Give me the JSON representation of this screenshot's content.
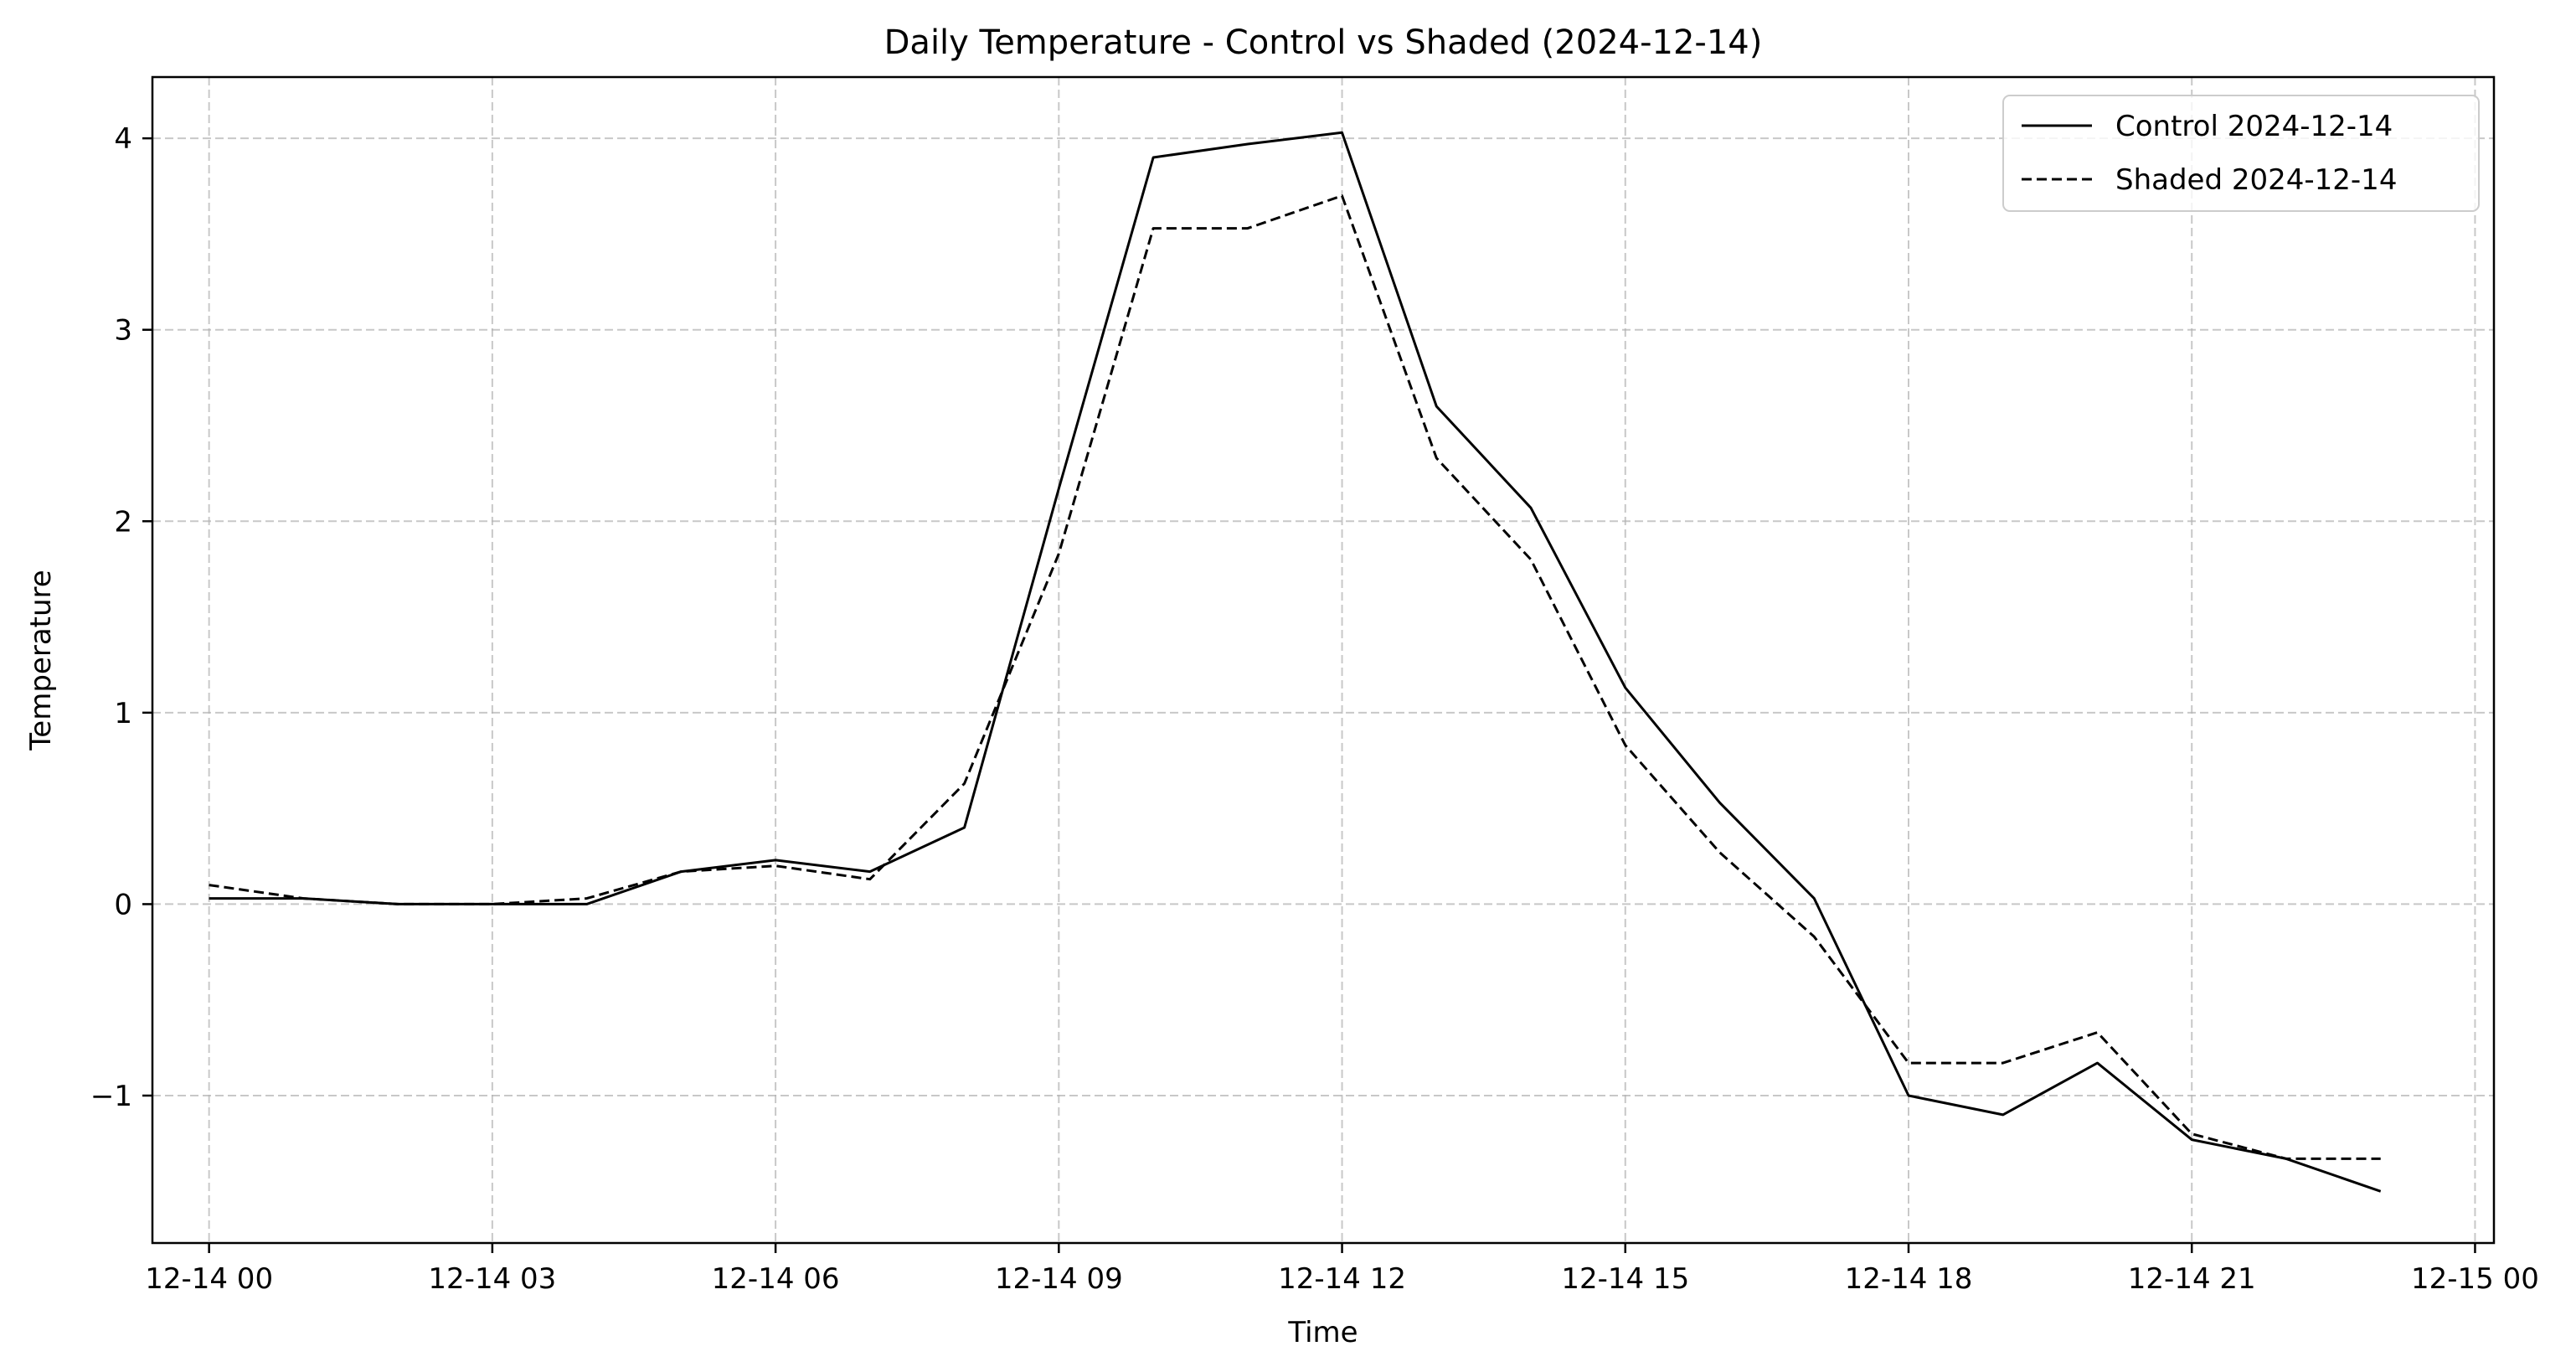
{
  "chart_data": {
    "type": "line",
    "title": "Daily Temperature - Control vs Shaded (2024-12-14)",
    "xlabel": "Time",
    "ylabel": "Temperature",
    "x_unit": "hours",
    "xlim": [
      -0.6,
      24.2
    ],
    "ylim": [
      -1.77,
      4.32
    ],
    "x_ticks": [
      0,
      3,
      6,
      9,
      12,
      15,
      18,
      21,
      24
    ],
    "x_tick_labels": [
      "12-14 00",
      "12-14 03",
      "12-14 06",
      "12-14 09",
      "12-14 12",
      "12-14 15",
      "12-14 18",
      "12-14 21",
      "12-15 00"
    ],
    "y_ticks": [
      -1,
      0,
      1,
      2,
      3,
      4
    ],
    "y_tick_labels": [
      "−1",
      "0",
      "1",
      "2",
      "3",
      "4"
    ],
    "grid": true,
    "legend_position": "top-right",
    "x": [
      0,
      1,
      2,
      3,
      4,
      5,
      6,
      7,
      8,
      9,
      10,
      11,
      12,
      13,
      14,
      15,
      16,
      17,
      18,
      19,
      20,
      21,
      22,
      23
    ],
    "series": [
      {
        "name": "Control 2024-12-14",
        "style": "solid",
        "color": "#000000",
        "values": [
          0.03,
          0.03,
          0.0,
          0.0,
          0.0,
          0.17,
          0.23,
          0.17,
          0.4,
          2.17,
          3.9,
          3.97,
          4.03,
          2.6,
          2.07,
          1.13,
          0.53,
          0.03,
          -1.0,
          -1.1,
          -0.83,
          -1.23,
          -1.33,
          -1.5
        ]
      },
      {
        "name": "Shaded 2024-12-14",
        "style": "dashed",
        "color": "#000000",
        "values": [
          0.1,
          0.03,
          0.0,
          0.0,
          0.03,
          0.17,
          0.2,
          0.13,
          0.63,
          1.83,
          3.53,
          3.53,
          3.7,
          2.33,
          1.8,
          0.83,
          0.27,
          -0.17,
          -0.83,
          -0.83,
          -0.67,
          -1.2,
          -1.33,
          -1.33
        ]
      }
    ]
  }
}
